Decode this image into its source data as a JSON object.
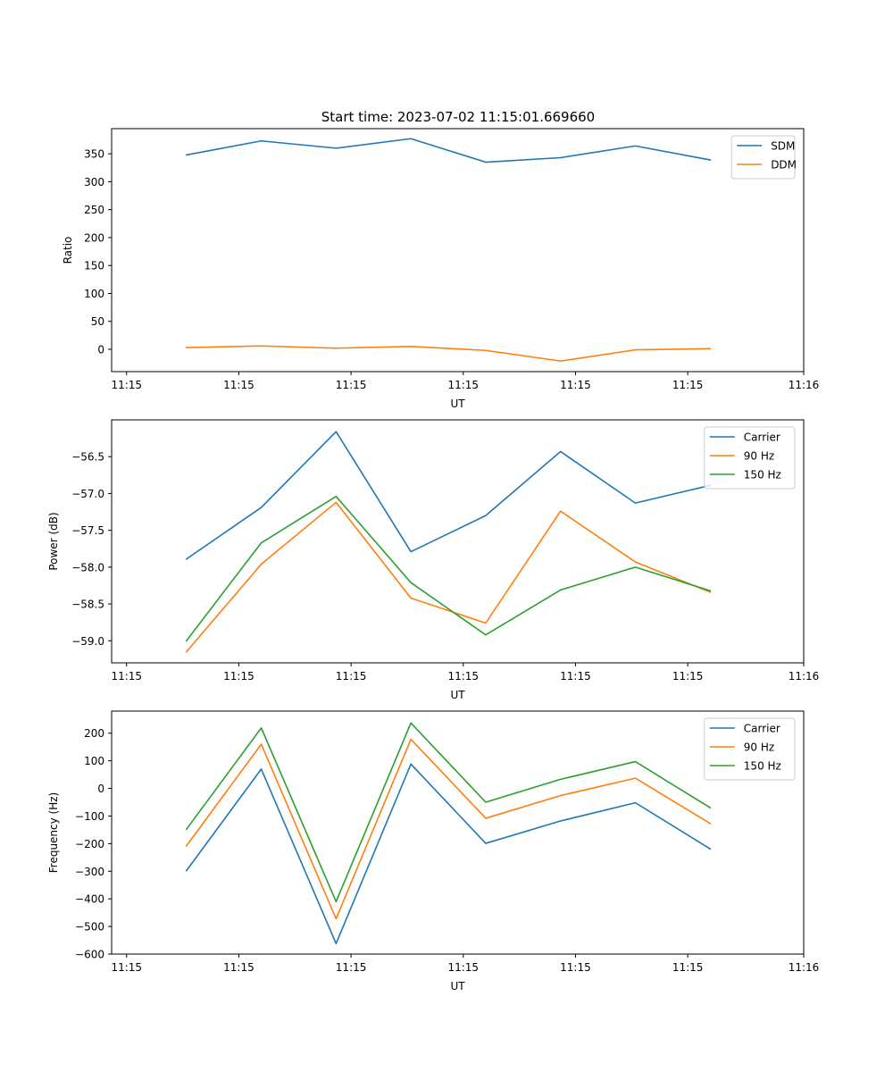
{
  "figure": {
    "title": "Start time: 2023-07-02 11:15:01.669660"
  },
  "chart_data": [
    {
      "type": "line",
      "title": "Start time: 2023-07-02 11:15:01.669660",
      "xlabel": "UT",
      "ylabel": "Ratio",
      "xlim": [
        0,
        9.25
      ],
      "ylim": [
        -40,
        395
      ],
      "xtick_values": [
        0.2,
        1.7,
        3.2,
        4.7,
        6.2,
        7.7,
        9.25
      ],
      "xtick_labels": [
        "11:15",
        "11:15",
        "11:15",
        "11:15",
        "11:15",
        "11:15",
        "11:16"
      ],
      "ytick_values": [
        0,
        50,
        100,
        150,
        200,
        250,
        300,
        350
      ],
      "ytick_labels": [
        "0",
        "50",
        "100",
        "150",
        "200",
        "250",
        "300",
        "350"
      ],
      "legend_position": "top-right",
      "x": [
        1,
        2,
        3,
        4,
        5,
        6,
        7,
        8
      ],
      "series": [
        {
          "name": "SDM",
          "color": "#1f77b4",
          "values": [
            348,
            373,
            360,
            377,
            335,
            343,
            364,
            339
          ]
        },
        {
          "name": "DDM",
          "color": "#ff7f0e",
          "values": [
            3,
            6,
            2,
            5,
            -2,
            -21,
            -1,
            1
          ]
        }
      ]
    },
    {
      "type": "line",
      "title": "",
      "xlabel": "UT",
      "ylabel": "Power (dB)",
      "xlim": [
        0,
        9.25
      ],
      "ylim": [
        -59.3,
        -56.0
      ],
      "xtick_values": [
        0.2,
        1.7,
        3.2,
        4.7,
        6.2,
        7.7,
        9.25
      ],
      "xtick_labels": [
        "11:15",
        "11:15",
        "11:15",
        "11:15",
        "11:15",
        "11:15",
        "11:16"
      ],
      "ytick_values": [
        -59.0,
        -58.5,
        -58.0,
        -57.5,
        -57.0,
        -56.5
      ],
      "ytick_labels": [
        "−59.0",
        "−58.5",
        "−58.0",
        "−57.5",
        "−57.0",
        "−56.5"
      ],
      "legend_position": "top-right",
      "x": [
        1,
        2,
        3,
        4,
        5,
        6,
        7,
        8
      ],
      "series": [
        {
          "name": "Carrier",
          "color": "#1f77b4",
          "values": [
            -57.89,
            -57.19,
            -56.16,
            -57.79,
            -57.3,
            -56.43,
            -57.13,
            -56.89
          ]
        },
        {
          "name": "90 Hz",
          "color": "#ff7f0e",
          "values": [
            -59.15,
            -57.96,
            -57.12,
            -58.42,
            -58.76,
            -57.24,
            -57.93,
            -58.34
          ]
        },
        {
          "name": "150 Hz",
          "color": "#2ca02c",
          "values": [
            -59.0,
            -57.67,
            -57.04,
            -58.21,
            -58.92,
            -58.31,
            -58.0,
            -58.32
          ]
        }
      ]
    },
    {
      "type": "line",
      "title": "",
      "xlabel": "UT",
      "ylabel": "Frequency (Hz)",
      "xlim": [
        0,
        9.25
      ],
      "ylim": [
        -600,
        280
      ],
      "xtick_values": [
        0.2,
        1.7,
        3.2,
        4.7,
        6.2,
        7.7,
        9.25
      ],
      "xtick_labels": [
        "11:15",
        "11:15",
        "11:15",
        "11:15",
        "11:15",
        "11:15",
        "11:16"
      ],
      "ytick_values": [
        -600,
        -500,
        -400,
        -300,
        -200,
        -100,
        0,
        100,
        200
      ],
      "ytick_labels": [
        "−600",
        "−500",
        "−400",
        "−300",
        "−200",
        "−100",
        "0",
        "100",
        "200"
      ],
      "legend_position": "top-right",
      "x": [
        1,
        2,
        3,
        4,
        5,
        6,
        7,
        8
      ],
      "series": [
        {
          "name": "Carrier",
          "color": "#1f77b4",
          "values": [
            -298,
            70,
            -562,
            88,
            -199,
            -118,
            -52,
            -219
          ]
        },
        {
          "name": "90 Hz",
          "color": "#ff7f0e",
          "values": [
            -208,
            160,
            -472,
            178,
            -108,
            -26,
            37,
            -127
          ]
        },
        {
          "name": "150 Hz",
          "color": "#2ca02c",
          "values": [
            -148,
            219,
            -410,
            237,
            -50,
            33,
            97,
            -70
          ]
        }
      ]
    }
  ]
}
